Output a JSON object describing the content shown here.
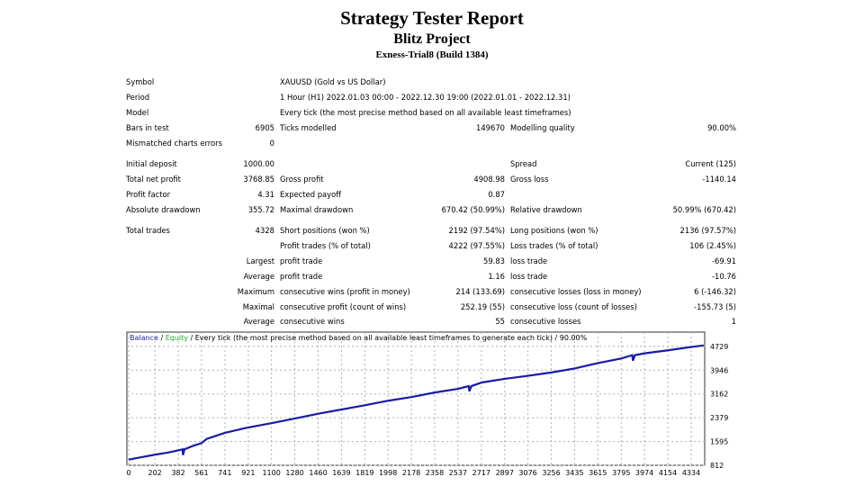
{
  "header": {
    "title": "Strategy Tester Report",
    "subtitle": "Blitz Project",
    "account": "Exness-Trial8 (Build 1384)"
  },
  "rows": [
    {
      "y": 92,
      "cells": [
        [
          "l1",
          "Symbol"
        ],
        [
          "t2",
          "XAUUSD (Gold vs US Dollar)"
        ]
      ]
    },
    {
      "y": 109,
      "cells": [
        [
          "l1",
          "Period"
        ],
        [
          "t2",
          "1 Hour (H1) 2022.01.03 00:00 - 2022.12.30 19:00 (2022.01.01 - 2022.12.31)"
        ]
      ]
    },
    {
      "y": 126,
      "cells": [
        [
          "l1",
          "Model"
        ],
        [
          "t2",
          "Every tick (the most precise method based on all available least timeframes)"
        ]
      ]
    },
    {
      "y": 143,
      "cells": [
        [
          "l1",
          "Bars in test"
        ],
        [
          "v1",
          "6905"
        ],
        [
          "l2",
          "Ticks modelled"
        ],
        [
          "v2",
          "149670"
        ],
        [
          "l3",
          "Modelling quality"
        ],
        [
          "v3",
          "90.00%"
        ]
      ]
    },
    {
      "y": 160,
      "cells": [
        [
          "l1",
          "Mismatched charts errors"
        ],
        [
          "v1",
          "0"
        ]
      ]
    },
    {
      "y": 183,
      "cells": [
        [
          "l1",
          "Initial deposit"
        ],
        [
          "v1",
          "1000.00"
        ],
        [
          "l3",
          "Spread"
        ],
        [
          "v3",
          "Current (125)"
        ]
      ]
    },
    {
      "y": 200,
      "cells": [
        [
          "l1",
          "Total net profit"
        ],
        [
          "v1",
          "3768.85"
        ],
        [
          "l2",
          "Gross profit"
        ],
        [
          "v2",
          "4908.98"
        ],
        [
          "l3",
          "Gross loss"
        ],
        [
          "v3",
          "-1140.14"
        ]
      ]
    },
    {
      "y": 217,
      "cells": [
        [
          "l1",
          "Profit factor"
        ],
        [
          "v1",
          "4.31"
        ],
        [
          "l2",
          "Expected payoff"
        ],
        [
          "v2",
          "0.87"
        ]
      ]
    },
    {
      "y": 234,
      "cells": [
        [
          "l1",
          "Absolute drawdown"
        ],
        [
          "v1",
          "355.72"
        ],
        [
          "l2",
          "Maximal drawdown"
        ],
        [
          "v2",
          "670.42 (50.99%)"
        ],
        [
          "l3",
          "Relative drawdown"
        ],
        [
          "v3",
          "50.99% (670.42)"
        ]
      ]
    },
    {
      "y": 257,
      "cells": [
        [
          "l1",
          "Total trades"
        ],
        [
          "v1",
          "4328"
        ],
        [
          "l2",
          "Short positions (won %)"
        ],
        [
          "v2",
          "2192 (97.54%)"
        ],
        [
          "l3",
          "Long positions (won %)"
        ],
        [
          "v3",
          "2136 (97.57%)"
        ]
      ]
    },
    {
      "y": 274,
      "cells": [
        [
          "l2",
          "Profit trades (% of total)"
        ],
        [
          "v2",
          "4222 (97.55%)"
        ],
        [
          "l3",
          "Loss trades (% of total)"
        ],
        [
          "v3",
          "106 (2.45%)"
        ]
      ]
    },
    {
      "y": 291,
      "cells": [
        [
          "v1",
          "Largest"
        ],
        [
          "l2",
          "profit trade"
        ],
        [
          "v2",
          "59.83"
        ],
        [
          "l3",
          "loss trade"
        ],
        [
          "v3",
          "-69.91"
        ]
      ]
    },
    {
      "y": 308,
      "cells": [
        [
          "v1",
          "Average"
        ],
        [
          "l2",
          "profit trade"
        ],
        [
          "v2",
          "1.16"
        ],
        [
          "l3",
          "loss trade"
        ],
        [
          "v3",
          "-10.76"
        ]
      ]
    },
    {
      "y": 325,
      "cells": [
        [
          "v1",
          "Maximum"
        ],
        [
          "l2",
          "consecutive wins (profit in money)"
        ],
        [
          "v2",
          "214 (133.69)"
        ],
        [
          "l3",
          "consecutive losses (loss in money)"
        ],
        [
          "v3",
          "6 (-146.32)"
        ]
      ]
    },
    {
      "y": 342,
      "cells": [
        [
          "v1",
          "Maximal"
        ],
        [
          "l2",
          "consecutive profit (count of wins)"
        ],
        [
          "v2",
          "252.19 (55)"
        ],
        [
          "l3",
          "consecutive loss (count of losses)"
        ],
        [
          "v3",
          "-155.73 (5)"
        ]
      ]
    },
    {
      "y": 358,
      "cells": [
        [
          "v1",
          "Average"
        ],
        [
          "l2",
          "consecutive wins"
        ],
        [
          "v2",
          "55"
        ],
        [
          "l3",
          "consecutive losses"
        ],
        [
          "v3",
          "1"
        ]
      ]
    }
  ],
  "chart_data": {
    "type": "line",
    "legend": {
      "balance": "Balance",
      "sep1": " / ",
      "equity": "Equity",
      "rest": " / Every tick (the most precise method based on all available least timeframes to generate each tick) / 90.00%"
    },
    "colors": {
      "balance": "#1a1aa6",
      "equity": "#22aa22",
      "grid": "#b0b0b0"
    },
    "xticks": [
      0,
      202,
      382,
      561,
      741,
      921,
      1100,
      1280,
      1460,
      1639,
      1819,
      1998,
      2178,
      2358,
      2537,
      2717,
      2897,
      3076,
      3256,
      3435,
      3615,
      3795,
      3974,
      4154,
      4334
    ],
    "yticks": [
      812,
      1595,
      2379,
      3162,
      3946,
      4729
    ],
    "xlim": [
      -14,
      4438
    ],
    "ylim": [
      812,
      5200
    ],
    "series": [
      {
        "name": "Balance",
        "x": [
          0,
          100,
          200,
          300,
          400,
          415,
          418,
          430,
          500,
          561,
          600,
          741,
          900,
          1100,
          1300,
          1460,
          1640,
          1819,
          2000,
          2178,
          2358,
          2537,
          2620,
          2625,
          2640,
          2720,
          2897,
          3076,
          3256,
          3435,
          3615,
          3795,
          3880,
          3885,
          3900,
          3974,
          4154,
          4334,
          4430
        ],
        "y": [
          1000,
          1080,
          1160,
          1230,
          1320,
          1340,
          1150,
          1340,
          1460,
          1540,
          1680,
          1880,
          2040,
          2200,
          2370,
          2510,
          2650,
          2790,
          2940,
          3060,
          3210,
          3330,
          3420,
          3250,
          3420,
          3540,
          3660,
          3760,
          3870,
          4000,
          4180,
          4330,
          4440,
          4260,
          4440,
          4500,
          4600,
          4710,
          4760
        ]
      }
    ]
  }
}
